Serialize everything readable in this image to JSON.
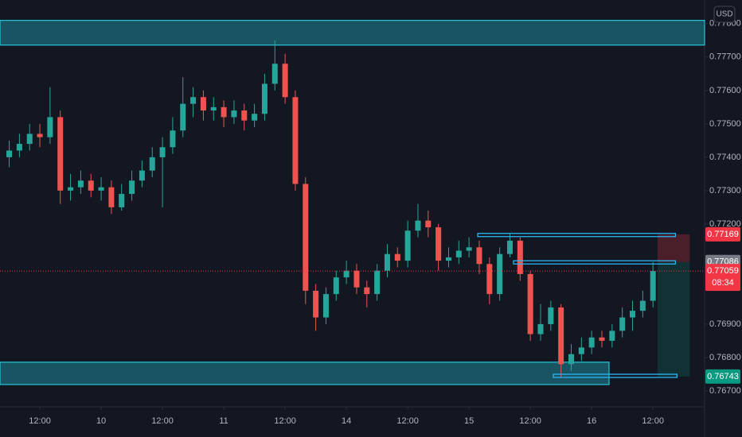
{
  "chart_data": {
    "type": "candlestick",
    "currency": "USD",
    "countdown": "08:34",
    "up_color": "#26a69a",
    "down_color": "#ef5350",
    "xlim": [
      4.2,
      142.1
    ],
    "ylim": [
      0.76657,
      0.77871
    ],
    "grid": false,
    "xticks": [
      {
        "value": 12,
        "label": "12:00"
      },
      {
        "value": 24,
        "label": "10"
      },
      {
        "value": 36,
        "label": "12:00"
      },
      {
        "value": 48,
        "label": "11"
      },
      {
        "value": 60,
        "label": "12:00"
      },
      {
        "value": 72,
        "label": "14"
      },
      {
        "value": 84,
        "label": "12:00"
      },
      {
        "value": 96,
        "label": "15"
      },
      {
        "value": 108,
        "label": "12:00"
      },
      {
        "value": 120,
        "label": "16"
      },
      {
        "value": 132,
        "label": "12:00"
      }
    ],
    "yticks": [
      {
        "value": 0.778,
        "label": "0.77800"
      },
      {
        "value": 0.777,
        "label": "0.77700"
      },
      {
        "value": 0.776,
        "label": "0.77600"
      },
      {
        "value": 0.775,
        "label": "0.77500"
      },
      {
        "value": 0.774,
        "label": "0.77400"
      },
      {
        "value": 0.773,
        "label": "0.77300"
      },
      {
        "value": 0.772,
        "label": "0.77200"
      },
      {
        "value": 0.769,
        "label": "0.76900"
      },
      {
        "value": 0.768,
        "label": "0.76800"
      },
      {
        "value": 0.767,
        "label": "0.76700"
      }
    ],
    "x": [
      6,
      8,
      10,
      12,
      14,
      16,
      18,
      20,
      22,
      24,
      26,
      28,
      30,
      32,
      34,
      36,
      38,
      40,
      42,
      44,
      46,
      48,
      50,
      52,
      54,
      56,
      58,
      60,
      62,
      64,
      66,
      68,
      70,
      72,
      74,
      76,
      78,
      80,
      82,
      84,
      86,
      88,
      90,
      92,
      94,
      96,
      98,
      100,
      102,
      104,
      106,
      108,
      110,
      112,
      114,
      116,
      118,
      120,
      122,
      124,
      126,
      128,
      130,
      132
    ],
    "open": [
      0.774,
      0.7742,
      0.7744,
      0.7747,
      0.7746,
      0.7752,
      0.773,
      0.7731,
      0.7733,
      0.773,
      0.7731,
      0.7725,
      0.7729,
      0.7733,
      0.7736,
      0.774,
      0.7743,
      0.7748,
      0.7756,
      0.7758,
      0.7754,
      0.7755,
      0.7752,
      0.7754,
      0.7751,
      0.7753,
      0.7762,
      0.7768,
      0.7758,
      0.7732,
      0.77,
      0.7692,
      0.7699,
      0.7704,
      0.7706,
      0.7701,
      0.7699,
      0.7706,
      0.7711,
      0.7709,
      0.7718,
      0.7721,
      0.7719,
      0.7709,
      0.771,
      0.7712,
      0.7713,
      0.7708,
      0.7699,
      0.7711,
      0.7715,
      0.7705,
      0.7687,
      0.769,
      0.7695,
      0.7678,
      0.7681,
      0.7683,
      0.7686,
      0.7685,
      0.7688,
      0.7692,
      0.7694,
      0.7697
    ],
    "high": [
      0.7745,
      0.7747,
      0.775,
      0.775,
      0.7761,
      0.7754,
      0.7735,
      0.7736,
      0.7735,
      0.7734,
      0.7733,
      0.7732,
      0.7736,
      0.7739,
      0.7743,
      0.7746,
      0.7752,
      0.7764,
      0.7761,
      0.776,
      0.7758,
      0.7757,
      0.7757,
      0.7756,
      0.7756,
      0.7765,
      0.7775,
      0.7771,
      0.776,
      0.7734,
      0.7702,
      0.7701,
      0.7706,
      0.7709,
      0.7708,
      0.7703,
      0.7708,
      0.7714,
      0.7713,
      0.7721,
      0.7726,
      0.7724,
      0.772,
      0.7713,
      0.7715,
      0.7716,
      0.7715,
      0.771,
      0.7713,
      0.7717,
      0.7716,
      0.7706,
      0.7696,
      0.7697,
      0.7696,
      0.7684,
      0.7686,
      0.7688,
      0.7688,
      0.769,
      0.7695,
      0.7697,
      0.77,
      0.77086
    ],
    "low": [
      0.7737,
      0.774,
      0.7742,
      0.7743,
      0.7744,
      0.7726,
      0.7727,
      0.7729,
      0.7728,
      0.7727,
      0.7723,
      0.7724,
      0.7727,
      0.7731,
      0.7734,
      0.7725,
      0.7741,
      0.7746,
      0.7752,
      0.7751,
      0.7751,
      0.7749,
      0.775,
      0.7748,
      0.7749,
      0.7751,
      0.776,
      0.7756,
      0.773,
      0.7696,
      0.7688,
      0.769,
      0.7697,
      0.7702,
      0.7699,
      0.7695,
      0.7697,
      0.7704,
      0.7707,
      0.7707,
      0.7716,
      0.7716,
      0.7706,
      0.7707,
      0.7708,
      0.771,
      0.7705,
      0.7696,
      0.7697,
      0.771,
      0.7703,
      0.7685,
      0.7685,
      0.7688,
      0.7674,
      0.7676,
      0.7679,
      0.7681,
      0.7683,
      0.7683,
      0.7686,
      0.7688,
      0.7692,
      0.7695
    ],
    "close": [
      0.7742,
      0.7744,
      0.7747,
      0.7746,
      0.7752,
      0.773,
      0.7731,
      0.7733,
      0.773,
      0.7731,
      0.7725,
      0.7729,
      0.7733,
      0.7736,
      0.774,
      0.7743,
      0.7748,
      0.7756,
      0.7758,
      0.7754,
      0.7755,
      0.7752,
      0.7754,
      0.7751,
      0.7753,
      0.7762,
      0.7768,
      0.7758,
      0.7732,
      0.77,
      0.7692,
      0.7699,
      0.7704,
      0.7706,
      0.7701,
      0.7699,
      0.7706,
      0.7711,
      0.7709,
      0.7718,
      0.7721,
      0.7719,
      0.7709,
      0.771,
      0.7712,
      0.7713,
      0.7708,
      0.7699,
      0.7711,
      0.7715,
      0.7705,
      0.7687,
      0.769,
      0.7695,
      0.7678,
      0.7681,
      0.7683,
      0.7686,
      0.7685,
      0.7688,
      0.7692,
      0.7694,
      0.7697,
      0.77059
    ],
    "last_color": "#f23645",
    "zone_color": "#26c6da",
    "zones": [
      {
        "top": 0.7781,
        "bottom": 0.77736,
        "x0": 4.2,
        "x1": 142.1
      },
      {
        "top": 0.76786,
        "bottom": 0.76719,
        "x0": 4.2,
        "x1": 123.4
      }
    ],
    "level_color": "#29b6f6",
    "levels": [
      {
        "y": 0.77167,
        "x0": 97.7,
        "x1": 136.4
      },
      {
        "y": 0.77085,
        "x0": 104.7,
        "x1": 136.4
      },
      {
        "y": 0.76745,
        "x0": 112.5,
        "x1": 136.7
      }
    ],
    "position": {
      "x0": 132.9,
      "x1": 139.2,
      "stop": 0.77169,
      "entry": 0.77086,
      "target": 0.76743,
      "stop_color": "#f23645",
      "entry_color": "#787b86",
      "target_color": "#089981"
    }
  }
}
